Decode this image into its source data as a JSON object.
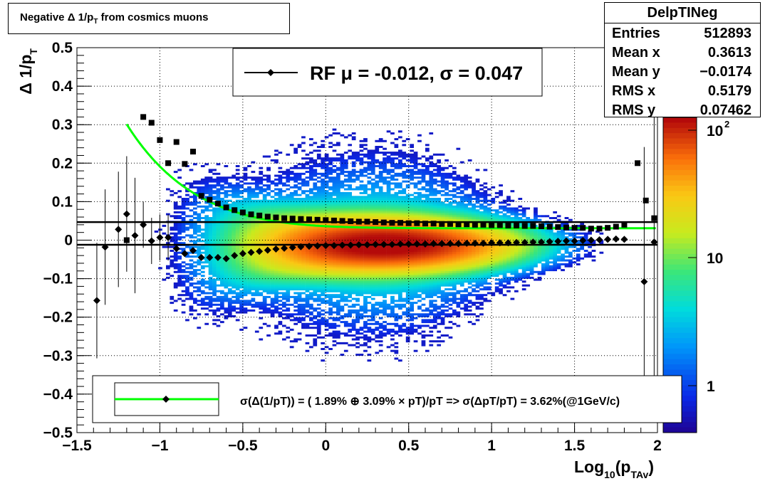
{
  "title": "Negative Δ 1/p_T from cosmics muons",
  "stats": {
    "name": "DelpTINeg",
    "rows": [
      {
        "key": "Entries",
        "value": "512893"
      },
      {
        "key": "Mean x",
        "value": "0.3613"
      },
      {
        "key": "Mean y",
        "value": "−0.0174"
      },
      {
        "key": "RMS x",
        "value": "0.5179"
      },
      {
        "key": "RMS y",
        "value": "0.07462"
      }
    ]
  },
  "chart_data": {
    "type": "heatmap",
    "title": "Negative Δ 1/p_T from cosmics muons",
    "xlabel": "Log10(pTAv)",
    "ylabel": "Δ 1/pT",
    "xlim": [
      -1.5,
      2.0
    ],
    "ylim": [
      -0.5,
      0.5
    ],
    "x_ticks": [
      -1.5,
      -1,
      -0.5,
      0,
      0.5,
      1,
      1.5,
      2
    ],
    "x_tick_labels": [
      "−1.5",
      "−1",
      "−0.5",
      "0",
      "0.5",
      "1",
      "1.5",
      "2"
    ],
    "y_ticks": [
      -0.5,
      -0.4,
      -0.3,
      -0.2,
      -0.1,
      0,
      0.1,
      0.2,
      0.3,
      0.4,
      0.5
    ],
    "y_tick_labels": [
      "−0.5",
      "−0.4",
      "−0.3",
      "−0.2",
      "−0.1",
      "0",
      "0.1",
      "0.2",
      "0.3",
      "0.4",
      "0.5"
    ],
    "z_scale": "log",
    "z_tick_labels": [
      "1",
      "10",
      "10^2"
    ],
    "grid": true,
    "legend_top": "RF μ = -0.012, σ =   0.047",
    "legend_bottom": "σ(Δ(1/pT)) = ( 1.89% ⊕  3.09% × pT)/pT => σ(ΔpT/pT) =  3.62%(@1GeV/c)",
    "hlines": [
      0.047,
      -0.012
    ],
    "fit_curve": {
      "name": "fit",
      "color": "#00ff00",
      "a": 0.0189,
      "b": 0.0309
    },
    "mean_points": {
      "x": [
        -1.38,
        -1.33,
        -1.25,
        -1.2,
        -1.15,
        -1.1,
        -1.05,
        -1.0,
        -0.95,
        -0.9,
        -0.85,
        -0.8,
        -0.75,
        -0.7,
        -0.65,
        -0.6,
        -0.55,
        -0.5,
        -0.45,
        -0.4,
        -0.35,
        -0.3,
        -0.25,
        -0.2,
        -0.15,
        -0.1,
        -0.05,
        0.0,
        0.05,
        0.1,
        0.15,
        0.2,
        0.25,
        0.3,
        0.35,
        0.4,
        0.45,
        0.5,
        0.55,
        0.6,
        0.65,
        0.7,
        0.75,
        0.8,
        0.85,
        0.9,
        0.95,
        1.0,
        1.05,
        1.1,
        1.15,
        1.2,
        1.25,
        1.3,
        1.35,
        1.4,
        1.45,
        1.5,
        1.55,
        1.6,
        1.65,
        1.7,
        1.75,
        1.8,
        1.92,
        1.98
      ],
      "y": [
        -0.157,
        -0.018,
        0.028,
        0.068,
        0.012,
        0.04,
        -0.002,
        0.007,
        0.007,
        -0.022,
        -0.035,
        -0.027,
        -0.045,
        -0.045,
        -0.045,
        -0.048,
        -0.04,
        -0.035,
        -0.032,
        -0.029,
        -0.026,
        -0.023,
        -0.021,
        -0.019,
        -0.017,
        -0.016,
        -0.015,
        -0.014,
        -0.014,
        -0.013,
        -0.013,
        -0.012,
        -0.012,
        -0.011,
        -0.011,
        -0.011,
        -0.01,
        -0.01,
        -0.01,
        -0.01,
        -0.009,
        -0.009,
        -0.009,
        -0.009,
        -0.008,
        -0.008,
        -0.008,
        -0.007,
        -0.007,
        -0.007,
        -0.006,
        -0.006,
        -0.005,
        -0.005,
        -0.004,
        -0.003,
        -0.002,
        -0.002,
        -0.001,
        0.0,
        0.001,
        0.002,
        0.003,
        0.002,
        -0.108,
        -0.005
      ]
    },
    "sigma_points": {
      "x": [
        -1.2,
        -1.1,
        -1.05,
        -1.0,
        -0.95,
        -0.9,
        -0.85,
        -0.8,
        -0.75,
        -0.7,
        -0.65,
        -0.6,
        -0.55,
        -0.5,
        -0.45,
        -0.4,
        -0.35,
        -0.3,
        -0.25,
        -0.2,
        -0.15,
        -0.1,
        -0.05,
        0.0,
        0.05,
        0.1,
        0.15,
        0.2,
        0.25,
        0.3,
        0.35,
        0.4,
        0.45,
        0.5,
        0.55,
        0.6,
        0.65,
        0.7,
        0.75,
        0.8,
        0.85,
        0.9,
        0.95,
        1.0,
        1.05,
        1.1,
        1.15,
        1.2,
        1.25,
        1.3,
        1.35,
        1.4,
        1.45,
        1.5,
        1.55,
        1.6,
        1.65,
        1.7,
        1.75,
        1.8,
        1.88,
        1.93,
        1.98
      ],
      "y": [
        0.0,
        0.32,
        0.305,
        0.26,
        0.2,
        0.255,
        0.198,
        0.23,
        0.115,
        0.105,
        0.095,
        0.085,
        0.078,
        0.072,
        0.067,
        0.064,
        0.061,
        0.059,
        0.057,
        0.056,
        0.055,
        0.054,
        0.053,
        0.052,
        0.051,
        0.05,
        0.049,
        0.048,
        0.048,
        0.047,
        0.046,
        0.045,
        0.045,
        0.044,
        0.044,
        0.043,
        0.043,
        0.042,
        0.042,
        0.041,
        0.041,
        0.04,
        0.04,
        0.039,
        0.039,
        0.038,
        0.038,
        0.037,
        0.037,
        0.036,
        0.035,
        0.034,
        0.033,
        0.032,
        0.032,
        0.03,
        0.03,
        0.032,
        0.035,
        0.04,
        0.2,
        0.103,
        0.057
      ]
    }
  },
  "colors": {
    "fit": "#00ff00",
    "hline": "#000000",
    "marker": "#000000"
  }
}
